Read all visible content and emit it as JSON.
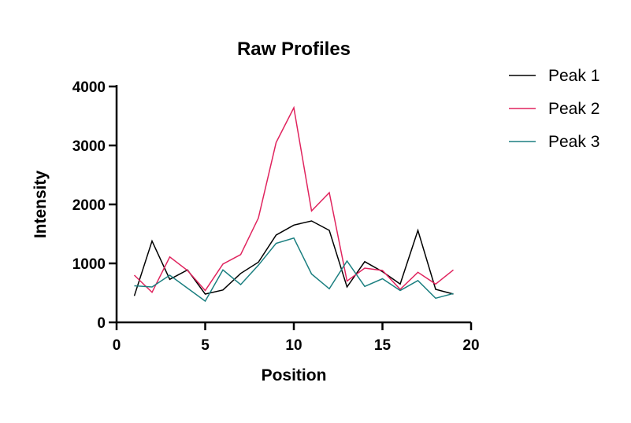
{
  "chart_data": {
    "type": "line",
    "title": "Raw Profiles",
    "xlabel": "Position",
    "ylabel": "Intensity",
    "xlim": [
      0,
      20
    ],
    "ylim": [
      0,
      4000
    ],
    "xticks": [
      0,
      5,
      10,
      15,
      20
    ],
    "yticks": [
      0,
      1000,
      2000,
      3000,
      4000
    ],
    "grid": false,
    "legend_position": "right",
    "x": [
      1,
      2,
      3,
      4,
      5,
      6,
      7,
      8,
      9,
      10,
      11,
      12,
      13,
      14,
      15,
      16,
      17,
      18,
      19
    ],
    "series": [
      {
        "name": "Peak 1",
        "color": "#000000",
        "values": [
          450,
          1380,
          730,
          890,
          480,
          550,
          830,
          1020,
          1480,
          1650,
          1720,
          1560,
          600,
          1030,
          860,
          650,
          1560,
          560,
          480
        ]
      },
      {
        "name": "Peak 2",
        "color": "#e0245e",
        "values": [
          800,
          510,
          1110,
          880,
          540,
          990,
          1150,
          1770,
          3050,
          3640,
          1890,
          2200,
          700,
          920,
          880,
          560,
          850,
          650,
          890
        ]
      },
      {
        "name": "Peak 3",
        "color": "#1b7f80",
        "values": [
          620,
          600,
          800,
          580,
          360,
          890,
          640,
          970,
          1340,
          1430,
          820,
          570,
          1040,
          610,
          740,
          540,
          710,
          410,
          490
        ]
      }
    ]
  }
}
